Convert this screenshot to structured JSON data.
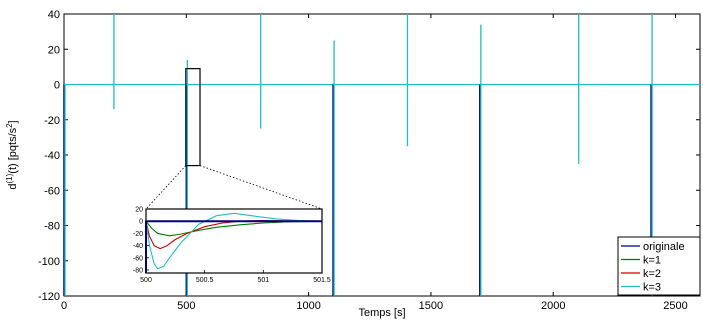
{
  "chart_data": [
    {
      "type": "line",
      "title": "",
      "xlabel": "Temps [s]",
      "ylabel_parts": {
        "base": "d",
        "sup": "(1)",
        "mid": "(t) [pqts/s",
        "sup2": "2",
        "end": "]"
      },
      "xlim": [
        0,
        2600
      ],
      "ylim": [
        -120,
        40
      ],
      "xticks": [
        0,
        500,
        1000,
        1500,
        2000,
        2500
      ],
      "yticks": [
        40,
        20,
        0,
        -20,
        -40,
        -60,
        -80,
        -100,
        -120
      ],
      "grid": false,
      "legend_position": "bottom-right",
      "colors": {
        "originale": "#000080",
        "k1": "#008000",
        "k2": "#d40000",
        "k3": "#1fbfbf"
      },
      "legend": [
        "originale",
        "k=1",
        "k=2",
        "k=3"
      ],
      "series": [
        {
          "name": "originale",
          "spikes": [
            [
              0,
              -120
            ],
            [
              500,
              -120
            ],
            [
              1100,
              -120
            ],
            [
              1700,
              -120
            ],
            [
              2400,
              -120
            ]
          ]
        },
        {
          "name": "k=3",
          "spikes": [
            {
              "x": 0,
              "min": -120,
              "max": 0
            },
            {
              "x": 200,
              "min": -14,
              "max": 40
            },
            {
              "x": 500,
              "min": -120,
              "max": 14
            },
            {
              "x": 800,
              "min": -25,
              "max": 40
            },
            {
              "x": 1100,
              "min": -120,
              "max": 25
            },
            {
              "x": 1400,
              "min": -35,
              "max": 40
            },
            {
              "x": 1700,
              "min": -120,
              "max": 34
            },
            {
              "x": 2100,
              "min": -45,
              "max": 40
            },
            {
              "x": 2400,
              "min": -120,
              "max": 40
            }
          ]
        }
      ],
      "zoom_box": {
        "xlim": [
          498,
          556
        ],
        "ylim": [
          -46,
          9
        ]
      }
    },
    {
      "type": "line",
      "title": "",
      "inset": true,
      "xlim": [
        500,
        501.5
      ],
      "ylim": [
        -85,
        20
      ],
      "xticks": [
        500,
        500.5,
        501,
        501.5
      ],
      "xtick_labels": [
        "500",
        "500.5",
        "501",
        "501.5"
      ],
      "yticks": [
        20,
        0,
        -20,
        -40,
        -60,
        -80
      ],
      "series": [
        {
          "name": "originale",
          "x": [
            500,
            500,
            500,
            501.5
          ],
          "y": [
            -85,
            0,
            0,
            0
          ]
        },
        {
          "name": "k=1",
          "x": [
            500,
            500.05,
            500.1,
            500.2,
            500.3,
            500.45,
            500.6,
            500.8,
            501.0,
            501.2,
            501.5
          ],
          "y": [
            0,
            -12,
            -20,
            -24,
            -21,
            -15,
            -10,
            -6,
            -3,
            -1,
            0
          ]
        },
        {
          "name": "k=2",
          "x": [
            500,
            500.03,
            500.07,
            500.12,
            500.18,
            500.25,
            500.35,
            500.5,
            500.65,
            500.8,
            501.0,
            501.2,
            501.5
          ],
          "y": [
            0,
            -25,
            -40,
            -45,
            -40,
            -30,
            -20,
            -9,
            -3,
            0,
            1,
            0.5,
            0
          ]
        },
        {
          "name": "k=3",
          "x": [
            500,
            500.03,
            500.07,
            500.1,
            500.15,
            500.2,
            500.3,
            500.45,
            500.6,
            500.75,
            500.9,
            501.1,
            501.3,
            501.5
          ],
          "y": [
            0,
            -40,
            -70,
            -78,
            -74,
            -60,
            -35,
            -5,
            9,
            13,
            9,
            4,
            1,
            0
          ]
        }
      ]
    }
  ]
}
